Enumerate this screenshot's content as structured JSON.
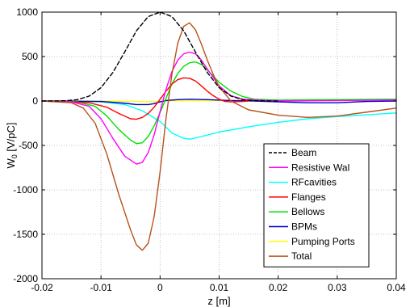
{
  "chart_data": {
    "type": "line",
    "title": "",
    "xlabel": "z [m]",
    "ylabel_main": "W",
    "ylabel_sub": "0",
    "ylabel_rest": " [V/pC]",
    "xlim": [
      -0.02,
      0.04
    ],
    "ylim": [
      -2000,
      1000
    ],
    "grid": true,
    "grid_style": "dotted",
    "legend_position": "lower-right",
    "xticks": [
      -0.02,
      -0.01,
      0,
      0.01,
      0.02,
      0.03,
      0.04
    ],
    "xtick_labels": [
      "-0.02",
      "-0.01",
      "0",
      "0.01",
      "0.02",
      "0.03",
      "0.04"
    ],
    "yticks": [
      -2000,
      -1500,
      -1000,
      -500,
      0,
      500,
      1000
    ],
    "ytick_labels": [
      "-2000",
      "-1500",
      "-1000",
      "-500",
      "0",
      "500",
      "1000"
    ],
    "series": [
      {
        "name": "Beam",
        "color": "#000000",
        "dash": "dashed",
        "points": [
          [
            -0.02,
            0
          ],
          [
            -0.016,
            3
          ],
          [
            -0.014,
            15
          ],
          [
            -0.012,
            55
          ],
          [
            -0.01,
            150
          ],
          [
            -0.008,
            320
          ],
          [
            -0.006,
            550
          ],
          [
            -0.004,
            790
          ],
          [
            -0.002,
            950
          ],
          [
            0,
            1000
          ],
          [
            0.002,
            950
          ],
          [
            0.004,
            790
          ],
          [
            0.006,
            550
          ],
          [
            0.008,
            320
          ],
          [
            0.01,
            150
          ],
          [
            0.012,
            55
          ],
          [
            0.014,
            15
          ],
          [
            0.016,
            3
          ],
          [
            0.02,
            0
          ]
        ]
      },
      {
        "name": "Resistive Wal",
        "color": "#ff00ff",
        "dash": "solid",
        "points": [
          [
            -0.02,
            0
          ],
          [
            -0.015,
            -10
          ],
          [
            -0.012,
            -60
          ],
          [
            -0.01,
            -200
          ],
          [
            -0.008,
            -420
          ],
          [
            -0.006,
            -620
          ],
          [
            -0.004,
            -710
          ],
          [
            -0.003,
            -690
          ],
          [
            -0.002,
            -580
          ],
          [
            -0.001,
            -380
          ],
          [
            0,
            -120
          ],
          [
            0.001,
            130
          ],
          [
            0.002,
            330
          ],
          [
            0.003,
            460
          ],
          [
            0.004,
            530
          ],
          [
            0.005,
            550
          ],
          [
            0.006,
            530
          ],
          [
            0.007,
            460
          ],
          [
            0.008,
            360
          ],
          [
            0.01,
            170
          ],
          [
            0.012,
            60
          ],
          [
            0.014,
            20
          ],
          [
            0.018,
            5
          ],
          [
            0.022,
            0
          ],
          [
            0.03,
            5
          ],
          [
            0.04,
            10
          ]
        ]
      },
      {
        "name": "RFcavities",
        "color": "#00ffff",
        "dash": "solid",
        "points": [
          [
            -0.02,
            0
          ],
          [
            -0.01,
            -10
          ],
          [
            -0.006,
            -40
          ],
          [
            -0.003,
            -110
          ],
          [
            0,
            -230
          ],
          [
            0.002,
            -360
          ],
          [
            0.004,
            -420
          ],
          [
            0.005,
            -430
          ],
          [
            0.007,
            -400
          ],
          [
            0.01,
            -350
          ],
          [
            0.015,
            -290
          ],
          [
            0.02,
            -240
          ],
          [
            0.025,
            -200
          ],
          [
            0.03,
            -175
          ],
          [
            0.035,
            -155
          ],
          [
            0.04,
            -135
          ]
        ]
      },
      {
        "name": "Flanges",
        "color": "#ff0000",
        "dash": "solid",
        "points": [
          [
            -0.02,
            0
          ],
          [
            -0.012,
            -20
          ],
          [
            -0.009,
            -70
          ],
          [
            -0.007,
            -140
          ],
          [
            -0.005,
            -200
          ],
          [
            -0.004,
            -205
          ],
          [
            -0.003,
            -185
          ],
          [
            -0.002,
            -140
          ],
          [
            -0.001,
            -70
          ],
          [
            0,
            20
          ],
          [
            0.001,
            110
          ],
          [
            0.002,
            190
          ],
          [
            0.003,
            240
          ],
          [
            0.004,
            260
          ],
          [
            0.005,
            255
          ],
          [
            0.006,
            225
          ],
          [
            0.007,
            170
          ],
          [
            0.008,
            110
          ],
          [
            0.009,
            60
          ],
          [
            0.01,
            20
          ],
          [
            0.011,
            -5
          ],
          [
            0.012,
            -10
          ],
          [
            0.014,
            -5
          ],
          [
            0.015,
            0
          ]
        ]
      },
      {
        "name": "Bellows",
        "color": "#00e000",
        "dash": "solid",
        "points": [
          [
            -0.02,
            0
          ],
          [
            -0.014,
            -10
          ],
          [
            -0.011,
            -60
          ],
          [
            -0.009,
            -170
          ],
          [
            -0.007,
            -320
          ],
          [
            -0.005,
            -440
          ],
          [
            -0.004,
            -480
          ],
          [
            -0.003,
            -470
          ],
          [
            -0.002,
            -400
          ],
          [
            -0.001,
            -280
          ],
          [
            0,
            -130
          ],
          [
            0.001,
            30
          ],
          [
            0.002,
            190
          ],
          [
            0.003,
            310
          ],
          [
            0.004,
            390
          ],
          [
            0.005,
            430
          ],
          [
            0.006,
            440
          ],
          [
            0.007,
            410
          ],
          [
            0.008,
            350
          ],
          [
            0.01,
            210
          ],
          [
            0.012,
            110
          ],
          [
            0.014,
            50
          ],
          [
            0.016,
            20
          ],
          [
            0.02,
            10
          ],
          [
            0.03,
            15
          ],
          [
            0.04,
            20
          ]
        ]
      },
      {
        "name": "BPMs",
        "color": "#0000cc",
        "dash": "solid",
        "points": [
          [
            -0.02,
            0
          ],
          [
            -0.01,
            -5
          ],
          [
            -0.006,
            -25
          ],
          [
            -0.004,
            -40
          ],
          [
            -0.002,
            -40
          ],
          [
            -0.001,
            -30
          ],
          [
            0,
            -10
          ],
          [
            0.001,
            5
          ],
          [
            0.003,
            15
          ],
          [
            0.005,
            20
          ],
          [
            0.008,
            15
          ],
          [
            0.012,
            5
          ],
          [
            0.016,
            0
          ],
          [
            0.02,
            -10
          ],
          [
            0.025,
            -20
          ],
          [
            0.03,
            -20
          ],
          [
            0.035,
            -5
          ],
          [
            0.04,
            0
          ]
        ]
      },
      {
        "name": "Pumping Ports",
        "color": "#ffff00",
        "dash": "solid",
        "points": [
          [
            -0.02,
            0
          ],
          [
            -0.01,
            0
          ],
          [
            -0.004,
            -5
          ],
          [
            -0.002,
            -10
          ],
          [
            0,
            -5
          ],
          [
            0.002,
            3
          ],
          [
            0.005,
            5
          ],
          [
            0.01,
            5
          ],
          [
            0.02,
            5
          ],
          [
            0.03,
            5
          ],
          [
            0.04,
            5
          ]
        ]
      },
      {
        "name": "Total",
        "color": "#b8521a",
        "dash": "solid",
        "points": [
          [
            -0.02,
            0
          ],
          [
            -0.015,
            -20
          ],
          [
            -0.013,
            -80
          ],
          [
            -0.011,
            -250
          ],
          [
            -0.009,
            -600
          ],
          [
            -0.007,
            -1050
          ],
          [
            -0.005,
            -1450
          ],
          [
            -0.004,
            -1620
          ],
          [
            -0.003,
            -1680
          ],
          [
            -0.002,
            -1600
          ],
          [
            -0.001,
            -1300
          ],
          [
            0,
            -800
          ],
          [
            0.001,
            -200
          ],
          [
            0.002,
            300
          ],
          [
            0.003,
            650
          ],
          [
            0.004,
            840
          ],
          [
            0.005,
            880
          ],
          [
            0.006,
            800
          ],
          [
            0.007,
            640
          ],
          [
            0.008,
            460
          ],
          [
            0.009,
            300
          ],
          [
            0.01,
            160
          ],
          [
            0.012,
            0
          ],
          [
            0.015,
            -100
          ],
          [
            0.02,
            -160
          ],
          [
            0.025,
            -185
          ],
          [
            0.03,
            -170
          ],
          [
            0.035,
            -125
          ],
          [
            0.04,
            -80
          ]
        ]
      }
    ]
  }
}
